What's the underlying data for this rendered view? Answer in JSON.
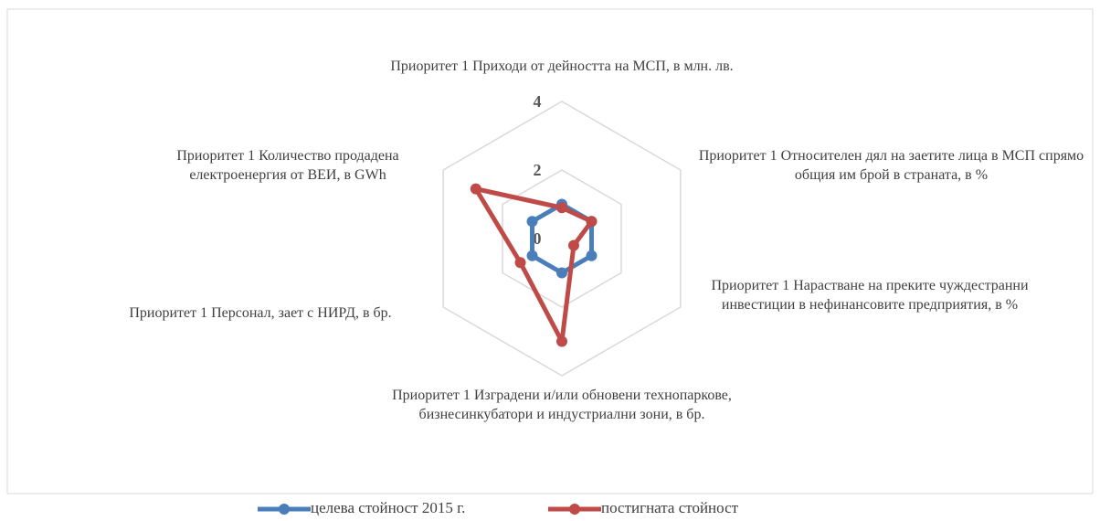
{
  "chart_data": {
    "type": "radar",
    "categories": [
      "Приоритет 1 Приходи от дейността на МСП, в млн. лв.",
      "Приоритет 1 Относителен дял на заетите лица в МСП спрямо общия им брой в страната, в %",
      "Приоритет 1 Нарастване на преките чуждестранни инвестиции в нефинансовите предприятия, в %",
      "Приоритет 1 Изградени и/или обновени технопаркове, бизнесинкубатори и индустриални зони, в бр.",
      "Приоритет 1 Персонал, зает с НИРД, в бр.",
      "Приоритет 1 Количество продадена електроенергия от ВЕИ, в GWh"
    ],
    "series": [
      {
        "name": "целева стойност 2015 г.",
        "color": "#4a7ebb",
        "values": [
          1,
          1,
          1,
          1,
          1,
          1
        ]
      },
      {
        "name": "постигната стойност",
        "color": "#be4b48",
        "values": [
          0.9,
          1.0,
          0.4,
          3.0,
          1.4,
          2.9
        ]
      }
    ],
    "ylim": [
      0,
      4
    ],
    "yticks": [
      0,
      2,
      4
    ],
    "grid": true,
    "legend": "bottom"
  }
}
